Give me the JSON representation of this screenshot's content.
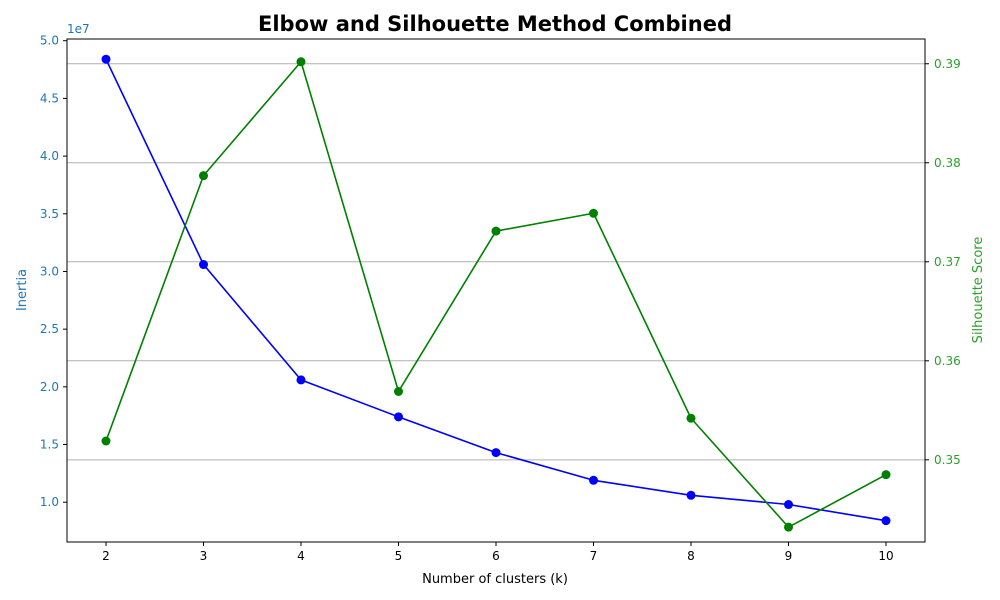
{
  "chart_data": {
    "type": "line",
    "title": "Elbow and Silhouette Method Combined",
    "xlabel": "Number of clusters (k)",
    "x": [
      2,
      3,
      4,
      5,
      6,
      7,
      8,
      9,
      10
    ],
    "x_ticks": [
      "2",
      "3",
      "4",
      "5",
      "6",
      "7",
      "8",
      "9",
      "10"
    ],
    "left_axis": {
      "label": "Inertia",
      "color": "#1f77b4",
      "offset_text": "1e7",
      "ylim": [
        0.655,
        5.015
      ],
      "ticks": [
        1.0,
        1.5,
        2.0,
        2.5,
        3.0,
        3.5,
        4.0,
        4.5,
        5.0
      ],
      "tick_labels": [
        "1.0",
        "1.5",
        "2.0",
        "2.5",
        "3.0",
        "3.5",
        "4.0",
        "4.5",
        "5.0"
      ]
    },
    "right_axis": {
      "label": "Silhouette Score",
      "color": "#2ca02c",
      "ylim": [
        0.3417,
        0.3925
      ],
      "ticks": [
        0.35,
        0.36,
        0.37,
        0.38,
        0.39
      ],
      "tick_labels": [
        "0.35",
        "0.36",
        "0.37",
        "0.38",
        "0.39"
      ]
    },
    "grid": true,
    "series": [
      {
        "axis": "left",
        "color": "#0000ff",
        "marker": "circle",
        "values": [
          48400000,
          30600000,
          20600000,
          17400000,
          14300000,
          11900000,
          10600000,
          9800000,
          8400000
        ]
      },
      {
        "axis": "right",
        "color": "#008000",
        "marker": "circle",
        "values": [
          0.3519,
          0.3787,
          0.3902,
          0.3569,
          0.3731,
          0.3749,
          0.3542,
          0.3432,
          0.3485
        ]
      }
    ]
  }
}
